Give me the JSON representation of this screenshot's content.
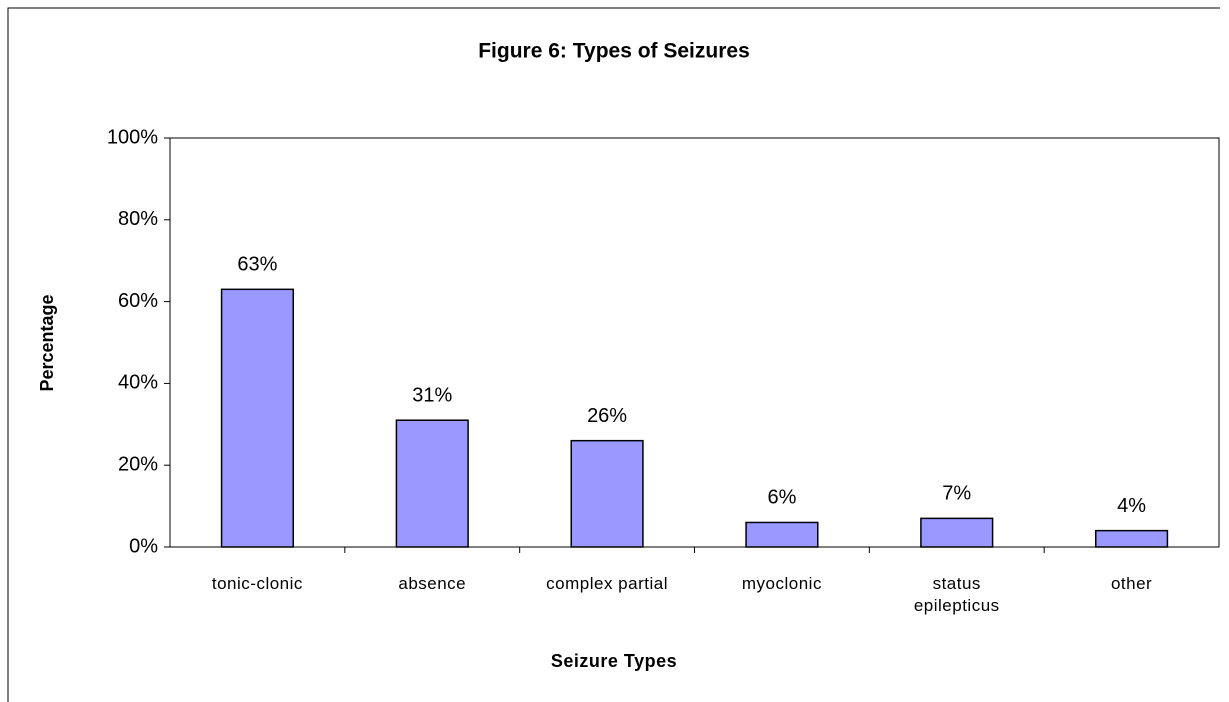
{
  "chart_data": {
    "type": "bar",
    "title": "Figure 6: Types of Seizures",
    "x_label": "Seizure Types",
    "y_label": "Percentage",
    "categories": [
      "tonic-clonic",
      "absence",
      "complex partial",
      "myoclonic",
      "status epilepticus",
      "other"
    ],
    "values": [
      63,
      31,
      26,
      6,
      7,
      4
    ],
    "value_labels": [
      "63%",
      "31%",
      "26%",
      "6%",
      "7%",
      "4%"
    ],
    "color": "#9999ff",
    "ylim": [
      0,
      100
    ],
    "yticks": [
      {
        "value": 0,
        "label": "0%"
      },
      {
        "value": 20,
        "label": "20%"
      },
      {
        "value": 40,
        "label": "40%"
      },
      {
        "value": 60,
        "label": "60%"
      },
      {
        "value": 80,
        "label": "80%"
      },
      {
        "value": 100,
        "label": "100%"
      }
    ],
    "grid": false
  }
}
